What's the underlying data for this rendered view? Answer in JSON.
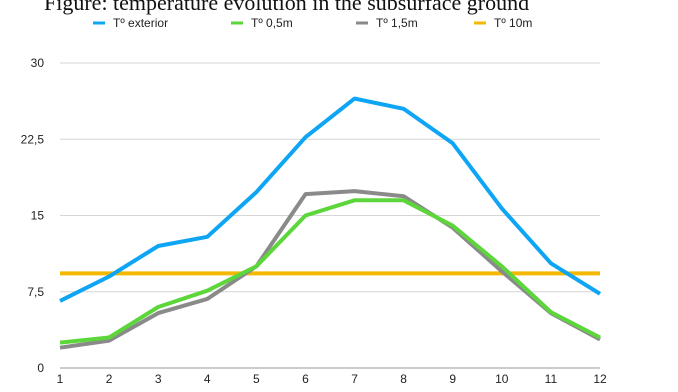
{
  "chart_data": {
    "type": "line",
    "title": "Figure: temperature evolution in the subsurface ground",
    "categories": [
      "1",
      "2",
      "3",
      "4",
      "5",
      "6",
      "7",
      "8",
      "9",
      "10",
      "11",
      "12"
    ],
    "series": [
      {
        "name": "Tº exterior",
        "color": "#0ea5f5",
        "values": [
          6.6,
          9.0,
          12.0,
          12.9,
          17.3,
          22.7,
          26.5,
          25.5,
          22.1,
          15.7,
          10.3,
          7.3
        ]
      },
      {
        "name": "Tº 0,5m",
        "color": "#5cd63a",
        "values": [
          2.5,
          3.0,
          6.0,
          7.6,
          10.0,
          15.0,
          16.5,
          16.5,
          14.0,
          10.0,
          5.5,
          3.0
        ]
      },
      {
        "name": "Tº 1,5m",
        "color": "#8a8a8a",
        "values": [
          2.0,
          2.7,
          5.4,
          6.8,
          10.0,
          17.1,
          17.4,
          16.9,
          13.8,
          9.5,
          5.4,
          2.8
        ]
      },
      {
        "name": "Tº 10m",
        "color": "#f5b800",
        "values": [
          9.3,
          9.3,
          9.3,
          9.3,
          9.3,
          9.3,
          9.3,
          9.3,
          9.3,
          9.3,
          9.3,
          9.3
        ]
      }
    ],
    "yticks": [
      "0",
      "7,5",
      "15",
      "22,5",
      "30"
    ],
    "ylim": [
      0,
      30
    ],
    "grid": true,
    "legend_position": "top"
  }
}
